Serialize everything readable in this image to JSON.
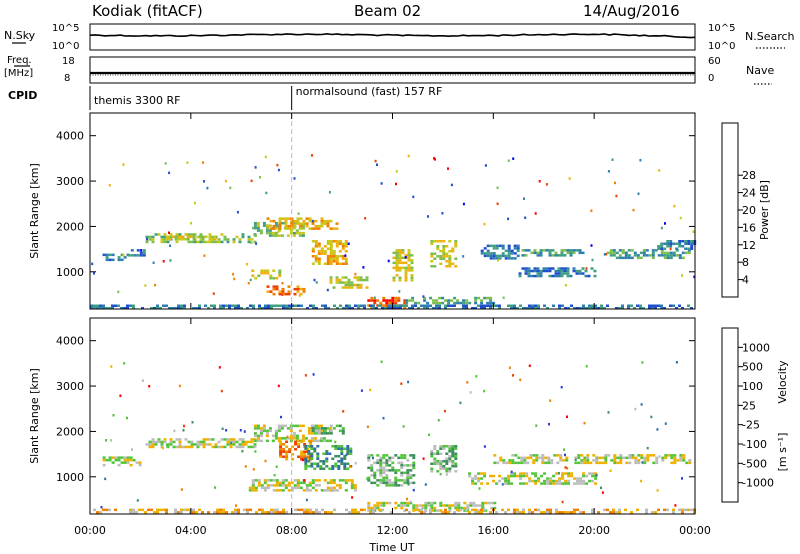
{
  "header": {
    "station": "Kodiak (fitACF)",
    "beam": "Beam 02",
    "date": "14/Aug/2016"
  },
  "status_panels": {
    "nsky": {
      "label": "N.Sky",
      "ticks": [
        "10^5",
        "10^0"
      ]
    },
    "nsearch": {
      "label": "N.Search",
      "ticks": [
        "10^5",
        "10^0"
      ]
    },
    "freq": {
      "label_line1": "Freq.",
      "label_line2": "[MHz]",
      "ticks": [
        "18",
        "8"
      ]
    },
    "nave": {
      "label": "Nave",
      "ticks": [
        "60",
        "0"
      ]
    },
    "cpid": {
      "label": "CPID",
      "modes": [
        {
          "name": "themis 3300 RF",
          "start_hour": 0
        },
        {
          "name": "normalsound (fast) 157 RF",
          "start_hour": 8.0
        }
      ]
    }
  },
  "colorbars": {
    "power": {
      "label": "Power [dB]",
      "ticks": [
        "28",
        "24",
        "20",
        "16",
        "12",
        "8",
        "4"
      ],
      "colors": [
        "#0000ff",
        "#1f4fcf",
        "#2e7fb0",
        "#3fa080",
        "#7dbf4f",
        "#c8c818",
        "#f0b010",
        "#f08000",
        "#f04000",
        "#ff0000"
      ]
    },
    "velocity": {
      "label": "Velocity",
      "unit_html": "[m s⁻¹]",
      "ticks": [
        "1000",
        "500",
        "100",
        "25",
        "-25",
        "-100",
        "-500",
        "-1000"
      ],
      "colors": [
        "#2a3fcf",
        "#2f6fa8",
        "#3c8f5c",
        "#52c43a",
        "#bcbcbc",
        "#f0b000",
        "#f08000",
        "#f04000",
        "#ff0000"
      ]
    }
  },
  "chart_data": {
    "type": "heatmap",
    "x_ticks": [
      "00:00",
      "04:00",
      "08:00",
      "12:00",
      "16:00",
      "20:00",
      "00:00"
    ],
    "xlabel": "Time UT",
    "ylabel": "Slant Range [km]",
    "y_ticks": [
      "4000",
      "3000",
      "2000",
      "1000"
    ],
    "xlim_hours": [
      0,
      24
    ],
    "ylim_km": [
      180,
      4500
    ],
    "power_regions": [
      {
        "t0": 0.5,
        "t1": 1.5,
        "r0": 1250,
        "r1": 1400,
        "level": 2
      },
      {
        "t0": 1.5,
        "t1": 2.2,
        "r0": 1350,
        "r1": 1500,
        "level": 2
      },
      {
        "t0": 2.2,
        "t1": 6.5,
        "r0": 1650,
        "r1": 1850,
        "level": 4
      },
      {
        "t0": 3.0,
        "t1": 5.0,
        "r0": 1700,
        "r1": 1800,
        "level": 5
      },
      {
        "t0": 6.5,
        "t1": 8.5,
        "r0": 1800,
        "r1": 2100,
        "level": 4
      },
      {
        "t0": 7.0,
        "t1": 9.8,
        "r0": 1950,
        "r1": 2200,
        "level": 6
      },
      {
        "t0": 8.8,
        "t1": 10.2,
        "r0": 1200,
        "r1": 1700,
        "level": 6
      },
      {
        "t0": 6.4,
        "t1": 7.5,
        "r0": 850,
        "r1": 1050,
        "level": 5
      },
      {
        "t0": 7.0,
        "t1": 8.5,
        "r0": 500,
        "r1": 700,
        "level": 7
      },
      {
        "t0": 9.5,
        "t1": 11.0,
        "r0": 650,
        "r1": 900,
        "level": 5
      },
      {
        "t0": 11.0,
        "t1": 12.5,
        "r0": 200,
        "r1": 450,
        "level": 8
      },
      {
        "t0": 12.0,
        "t1": 12.8,
        "r0": 800,
        "r1": 1500,
        "level": 5
      },
      {
        "t0": 13.5,
        "t1": 14.5,
        "r0": 1100,
        "r1": 1700,
        "level": 5
      },
      {
        "t0": 12.5,
        "t1": 16.0,
        "r0": 300,
        "r1": 450,
        "level": 3
      },
      {
        "t0": 15.5,
        "t1": 17.0,
        "r0": 1300,
        "r1": 1600,
        "level": 2
      },
      {
        "t0": 17.0,
        "t1": 19.5,
        "r0": 1350,
        "r1": 1500,
        "level": 3
      },
      {
        "t0": 17.0,
        "t1": 20.0,
        "r0": 900,
        "r1": 1100,
        "level": 2
      },
      {
        "t0": 20.5,
        "t1": 23.8,
        "r0": 1300,
        "r1": 1500,
        "level": 3
      },
      {
        "t0": 22.5,
        "t1": 24.0,
        "r0": 1500,
        "r1": 1700,
        "level": 2
      },
      {
        "t0": 0.0,
        "t1": 24.0,
        "r0": 190,
        "r1": 280,
        "level": 2
      }
    ],
    "velocity_regions": [
      {
        "t0": 2.2,
        "t1": 6.5,
        "r0": 1650,
        "r1": 1850,
        "level": 4
      },
      {
        "t0": 0.5,
        "t1": 2.0,
        "r0": 1250,
        "r1": 1450,
        "level": 4
      },
      {
        "t0": 6.5,
        "t1": 9.5,
        "r0": 1800,
        "r1": 2150,
        "level": 4
      },
      {
        "t0": 7.5,
        "t1": 8.8,
        "r0": 1400,
        "r1": 1800,
        "level": 6
      },
      {
        "t0": 8.5,
        "t1": 10.3,
        "r0": 1200,
        "r1": 1700,
        "level": 2
      },
      {
        "t0": 8.8,
        "t1": 10.0,
        "r0": 1950,
        "r1": 2150,
        "level": 3
      },
      {
        "t0": 6.3,
        "t1": 10.5,
        "r0": 700,
        "r1": 950,
        "level": 4
      },
      {
        "t0": 11.0,
        "t1": 12.8,
        "r0": 800,
        "r1": 1500,
        "level": 3
      },
      {
        "t0": 13.5,
        "t1": 14.5,
        "r0": 1100,
        "r1": 1700,
        "level": 3
      },
      {
        "t0": 11.0,
        "t1": 16.0,
        "r0": 250,
        "r1": 450,
        "level": 4
      },
      {
        "t0": 16.0,
        "t1": 23.8,
        "r0": 1300,
        "r1": 1500,
        "level": 4
      },
      {
        "t0": 15.0,
        "t1": 20.0,
        "r0": 850,
        "r1": 1100,
        "level": 4
      },
      {
        "t0": 0.0,
        "t1": 24.0,
        "r0": 190,
        "r1": 300,
        "level": 5
      }
    ]
  }
}
